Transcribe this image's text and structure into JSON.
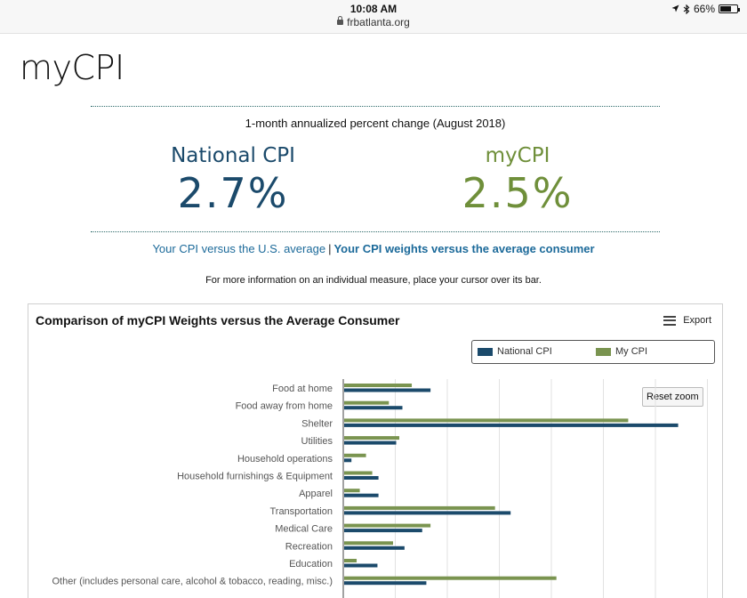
{
  "status_bar": {
    "time": "10:08 AM",
    "url": "frbatlanta.org",
    "battery": "66%",
    "battery_level": 0.66
  },
  "page": {
    "title": "myCPI",
    "subtitle": "1-month annualized percent change (August 2018)",
    "national_label": "National CPI",
    "national_value": "2.7%",
    "my_label": "myCPI",
    "my_value": "2.5%",
    "link_versus": "Your CPI versus the U.S. average",
    "link_separator": "|",
    "link_weights": "Your CPI weights versus the average consumer",
    "hint": "For more information on an individual measure, place your cursor over its bar."
  },
  "chart_card": {
    "title": "Comparison of myCPI Weights versus the Average Consumer",
    "export_label": "Export",
    "reset_zoom_label": "Reset zoom"
  },
  "colors": {
    "national": "#1b4a6b",
    "my": "#7a9450",
    "link": "#1c6a9a"
  },
  "chart_data": {
    "type": "bar",
    "orientation": "horizontal",
    "title": "Comparison of myCPI Weights versus the Average Consumer",
    "categories": [
      "Food at home",
      "Food away from home",
      "Shelter",
      "Utilities",
      "Household operations",
      "Household furnishings & Equipment",
      "Apparel",
      "Transportation",
      "Medical Care",
      "Recreation",
      "Education",
      "Other (includes personal care, alcohol & tobacco, reading, misc.)"
    ],
    "series": [
      {
        "name": "My CPI",
        "color": "#7a9450",
        "values": [
          6.5,
          4.3,
          27.3,
          5.3,
          2.1,
          2.7,
          1.5,
          14.5,
          8.3,
          4.7,
          1.2,
          20.4
        ]
      },
      {
        "name": "National CPI",
        "color": "#1b4a6b",
        "values": [
          8.3,
          5.6,
          32.1,
          5.0,
          0.7,
          3.3,
          3.3,
          16.0,
          7.5,
          5.8,
          3.2,
          7.9
        ]
      }
    ],
    "xlim": [
      0,
      35
    ],
    "grid": true,
    "legend": "top-right"
  }
}
